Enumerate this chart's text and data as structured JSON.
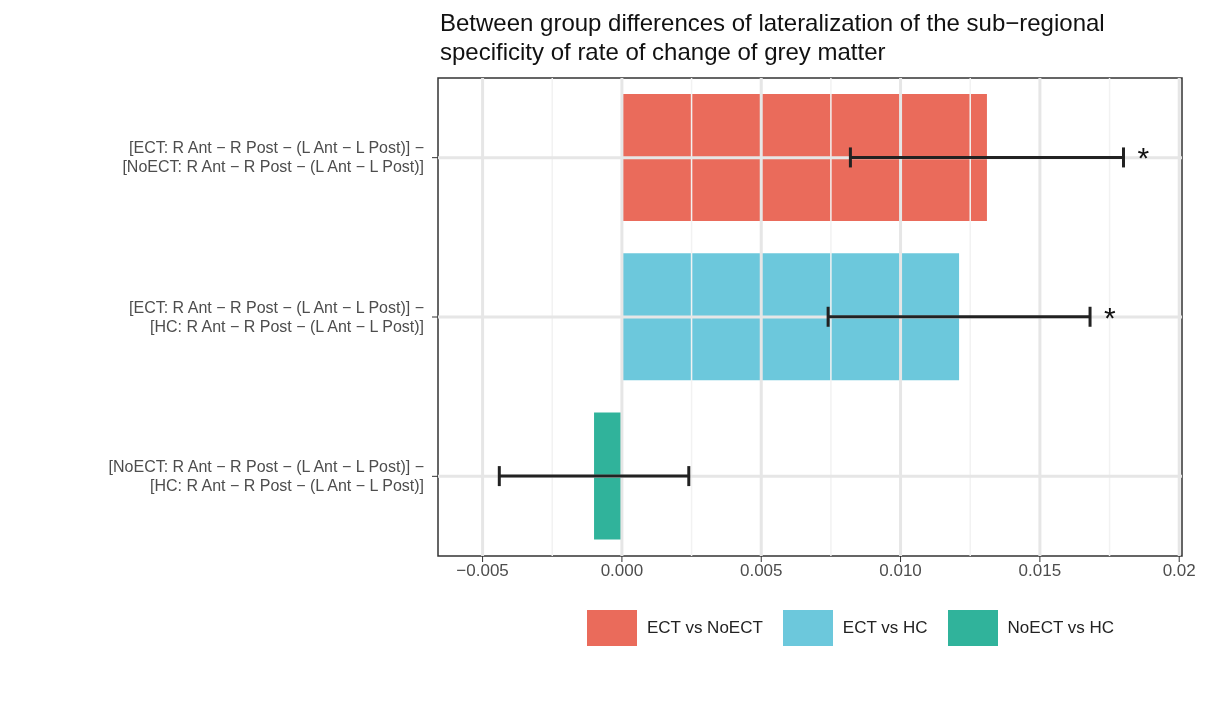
{
  "chart_data": {
    "type": "bar",
    "orientation": "horizontal",
    "stacked": true,
    "title": "Between group differences of lateralization of the sub−regional specificity of rate of change of grey matter",
    "categories": [
      "[ECT: R Ant − R Post − (L Ant − L Post)] −\n[NoECT: R Ant − R Post − (L Ant − L Post)]",
      "[ECT: R Ant − R Post − (L Ant − L Post)] −\n[HC: R Ant − R Post − (L Ant − L Post)]",
      "[NoECT: R Ant − R Post − (L Ant − L Post)] −\n[HC: R Ant − R Post − (L Ant − L Post)]"
    ],
    "series": [
      {
        "name": "ECT vs NoECT",
        "color": "#ea6b5b",
        "values": [
          0.0131,
          null,
          null
        ],
        "errors": [
          [
            0.0082,
            0.018
          ],
          null,
          null
        ]
      },
      {
        "name": "ECT vs HC",
        "color": "#6cc8dc",
        "values": [
          null,
          0.0121,
          null
        ],
        "errors": [
          null,
          [
            0.0074,
            0.0168
          ],
          null
        ]
      },
      {
        "name": "NoECT vs HC",
        "color": "#30b39b",
        "values": [
          null,
          null,
          -0.001
        ],
        "errors": [
          null,
          null,
          [
            -0.0044,
            0.0024
          ]
        ]
      }
    ],
    "xlim": [
      -0.0066,
      0.0201
    ],
    "xticks": [
      {
        "value": -0.005,
        "label": "−0.005"
      },
      {
        "value": 0,
        "label": "0.000"
      },
      {
        "value": 0.005,
        "label": "0.005"
      },
      {
        "value": 0.01,
        "label": "0.010"
      },
      {
        "value": 0.015,
        "label": "0.015"
      },
      {
        "value": 0.02,
        "label": "0.02"
      }
    ],
    "grid": true,
    "legend": "bottom",
    "annotations": [
      {
        "text": "*",
        "x": 0.018,
        "y": "[ECT: R Ant − R Post − (L Ant − L Post)] −\n[NoECT: R Ant − R Post − (L Ant − L Post)]"
      },
      {
        "text": "*",
        "x": 0.0168,
        "y": "[ECT: R Ant − R Post − (L Ant − L Post)] −\n[HC: R Ant − R Post − (L Ant − L Post)]"
      }
    ]
  }
}
